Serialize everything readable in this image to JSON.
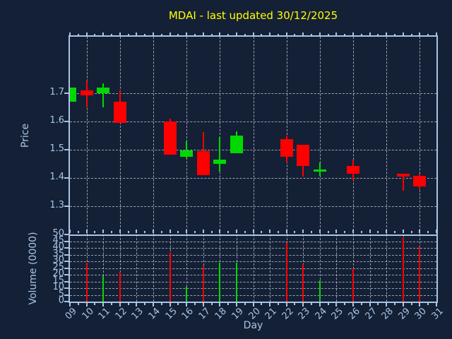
{
  "title": "MDAI - last updated 30/12/2025",
  "colors": {
    "background": "#142036",
    "axis": "#A9C5E5",
    "grid": "#C5CDD6",
    "up": "#00D900",
    "down": "#FF0000",
    "title": "#FFFF00"
  },
  "price_axis": {
    "label": "Price",
    "ticks": [
      "1.7",
      "1.6",
      "1.5",
      "1.4",
      "1.3"
    ],
    "min": 1.2,
    "max": 1.9
  },
  "volume_axis": {
    "label": "Volume (0000)",
    "ticks": [
      "50",
      "45",
      "40",
      "35",
      "30",
      "25",
      "20",
      "15",
      "10",
      "5",
      "0"
    ],
    "min": 0,
    "max": 50
  },
  "x_axis": {
    "label": "Day",
    "day_min": 9,
    "day_max": 31,
    "tick_labels": [
      "09",
      "10",
      "11",
      "12",
      "13",
      "14",
      "15",
      "16",
      "17",
      "18",
      "19",
      "20",
      "21",
      "22",
      "23",
      "24",
      "25",
      "26",
      "27",
      "28",
      "29",
      "30",
      "31"
    ]
  },
  "chart_data": {
    "type": "candlestick",
    "subplots": [
      "price",
      "volume"
    ],
    "series": [
      {
        "day": 9,
        "open": 1.67,
        "high": 1.72,
        "low": 1.67,
        "close": 1.72,
        "volume": 0,
        "direction": "up"
      },
      {
        "day": 10,
        "open": 1.71,
        "high": 1.745,
        "low": 1.65,
        "close": 1.693,
        "volume": 29,
        "direction": "down"
      },
      {
        "day": 11,
        "open": 1.7,
        "high": 1.735,
        "low": 1.65,
        "close": 1.72,
        "volume": 19,
        "direction": "up"
      },
      {
        "day": 12,
        "open": 1.67,
        "high": 1.71,
        "low": 1.595,
        "close": 1.595,
        "volume": 22,
        "direction": "down"
      },
      {
        "day": 15,
        "open": 1.6,
        "high": 1.61,
        "low": 1.483,
        "close": 1.483,
        "volume": 37,
        "direction": "down"
      },
      {
        "day": 16,
        "open": 1.474,
        "high": 1.529,
        "low": 1.47,
        "close": 1.497,
        "volume": 11,
        "direction": "up"
      },
      {
        "day": 17,
        "open": 1.495,
        "high": 1.562,
        "low": 1.411,
        "close": 1.411,
        "volume": 27,
        "direction": "down"
      },
      {
        "day": 18,
        "open": 1.449,
        "high": 1.546,
        "low": 1.423,
        "close": 1.466,
        "volume": 29,
        "direction": "up"
      },
      {
        "day": 19,
        "open": 1.487,
        "high": 1.566,
        "low": 1.487,
        "close": 1.549,
        "volume": 29,
        "direction": "up"
      },
      {
        "day": 22,
        "open": 1.537,
        "high": 1.55,
        "low": 1.454,
        "close": 1.474,
        "volume": 44,
        "direction": "down"
      },
      {
        "day": 23,
        "open": 1.518,
        "high": 1.518,
        "low": 1.404,
        "close": 1.443,
        "volume": 28,
        "direction": "down"
      },
      {
        "day": 24,
        "open": 1.431,
        "high": 1.454,
        "low": 1.408,
        "close": 1.431,
        "volume": 16,
        "direction": "up"
      },
      {
        "day": 26,
        "open": 1.443,
        "high": 1.464,
        "low": 1.393,
        "close": 1.414,
        "volume": 25,
        "direction": "down"
      },
      {
        "day": 29,
        "open": 1.416,
        "high": 1.416,
        "low": 1.356,
        "close": 1.404,
        "volume": 48,
        "direction": "down"
      },
      {
        "day": 30,
        "open": 1.408,
        "high": 1.414,
        "low": 1.359,
        "close": 1.371,
        "volume": 41,
        "direction": "down"
      }
    ]
  }
}
